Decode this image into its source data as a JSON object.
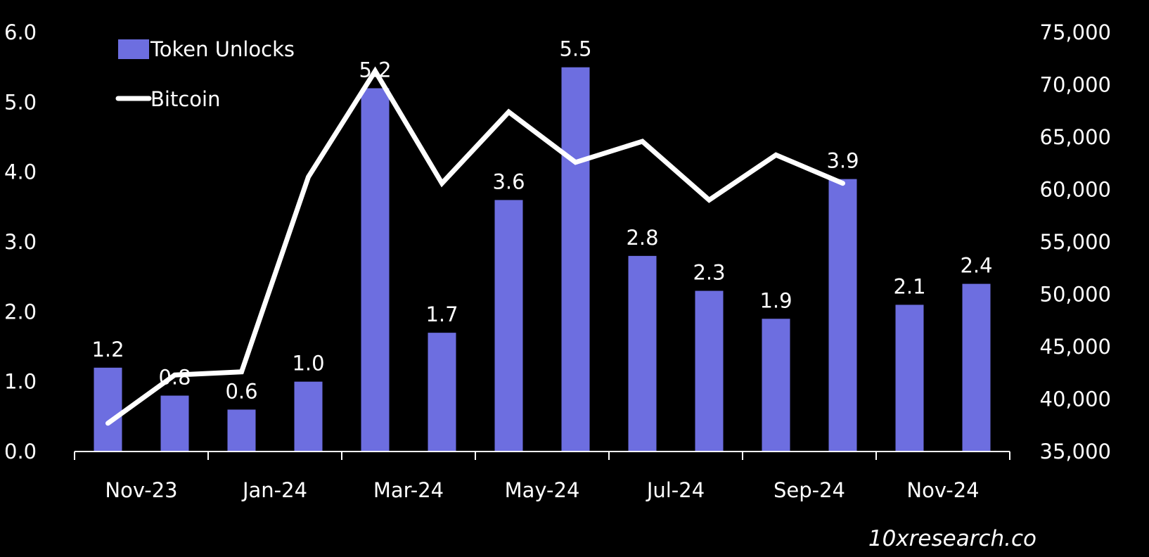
{
  "chart_data": {
    "type": "bar+line",
    "categories": [
      "Nov-23",
      "Dec-23",
      "Jan-24",
      "Feb-24",
      "Mar-24",
      "Apr-24",
      "May-24",
      "Jun-24",
      "Jul-24",
      "Aug-24",
      "Sep-24",
      "Oct-24",
      "Nov-24",
      "Dec-24"
    ],
    "x_tick_labels": [
      "Nov-23",
      "Jan-24",
      "Mar-24",
      "May-24",
      "Jul-24",
      "Sep-24",
      "Nov-24"
    ],
    "series": [
      {
        "name": "Token Unlocks",
        "type": "bar",
        "axis": "left",
        "color": "#6d6ee0",
        "values": [
          1.2,
          0.8,
          0.6,
          1.0,
          5.2,
          1.7,
          3.6,
          5.5,
          2.8,
          2.3,
          1.9,
          3.9,
          2.1,
          2.4
        ],
        "labels": [
          "1.2",
          "0.8",
          "0.6",
          "1.0",
          "5.2",
          "1.7",
          "3.6",
          "5.5",
          "2.8",
          "2.3",
          "1.9",
          "3.9",
          "2.1",
          "2.4"
        ]
      },
      {
        "name": "Bitcoin",
        "type": "line",
        "axis": "right",
        "color": "#ffffff",
        "values": [
          37700,
          42300,
          42600,
          61200,
          71300,
          60600,
          67400,
          62600,
          64600,
          59000,
          63300,
          60600,
          null,
          null
        ]
      }
    ],
    "y_left": {
      "min": 0,
      "max": 6,
      "ticks": [
        "0.0",
        "1.0",
        "2.0",
        "3.0",
        "4.0",
        "5.0",
        "6.0"
      ]
    },
    "y_right": {
      "min": 35000,
      "max": 75000,
      "ticks": [
        "35,000",
        "40,000",
        "45,000",
        "50,000",
        "55,000",
        "60,000",
        "65,000",
        "70,000",
        "75,000"
      ]
    },
    "legend": {
      "placement": "top-left",
      "items": [
        "Token Unlocks",
        "Bitcoin"
      ]
    },
    "grid": false
  },
  "watermark": "10xresearch.co"
}
